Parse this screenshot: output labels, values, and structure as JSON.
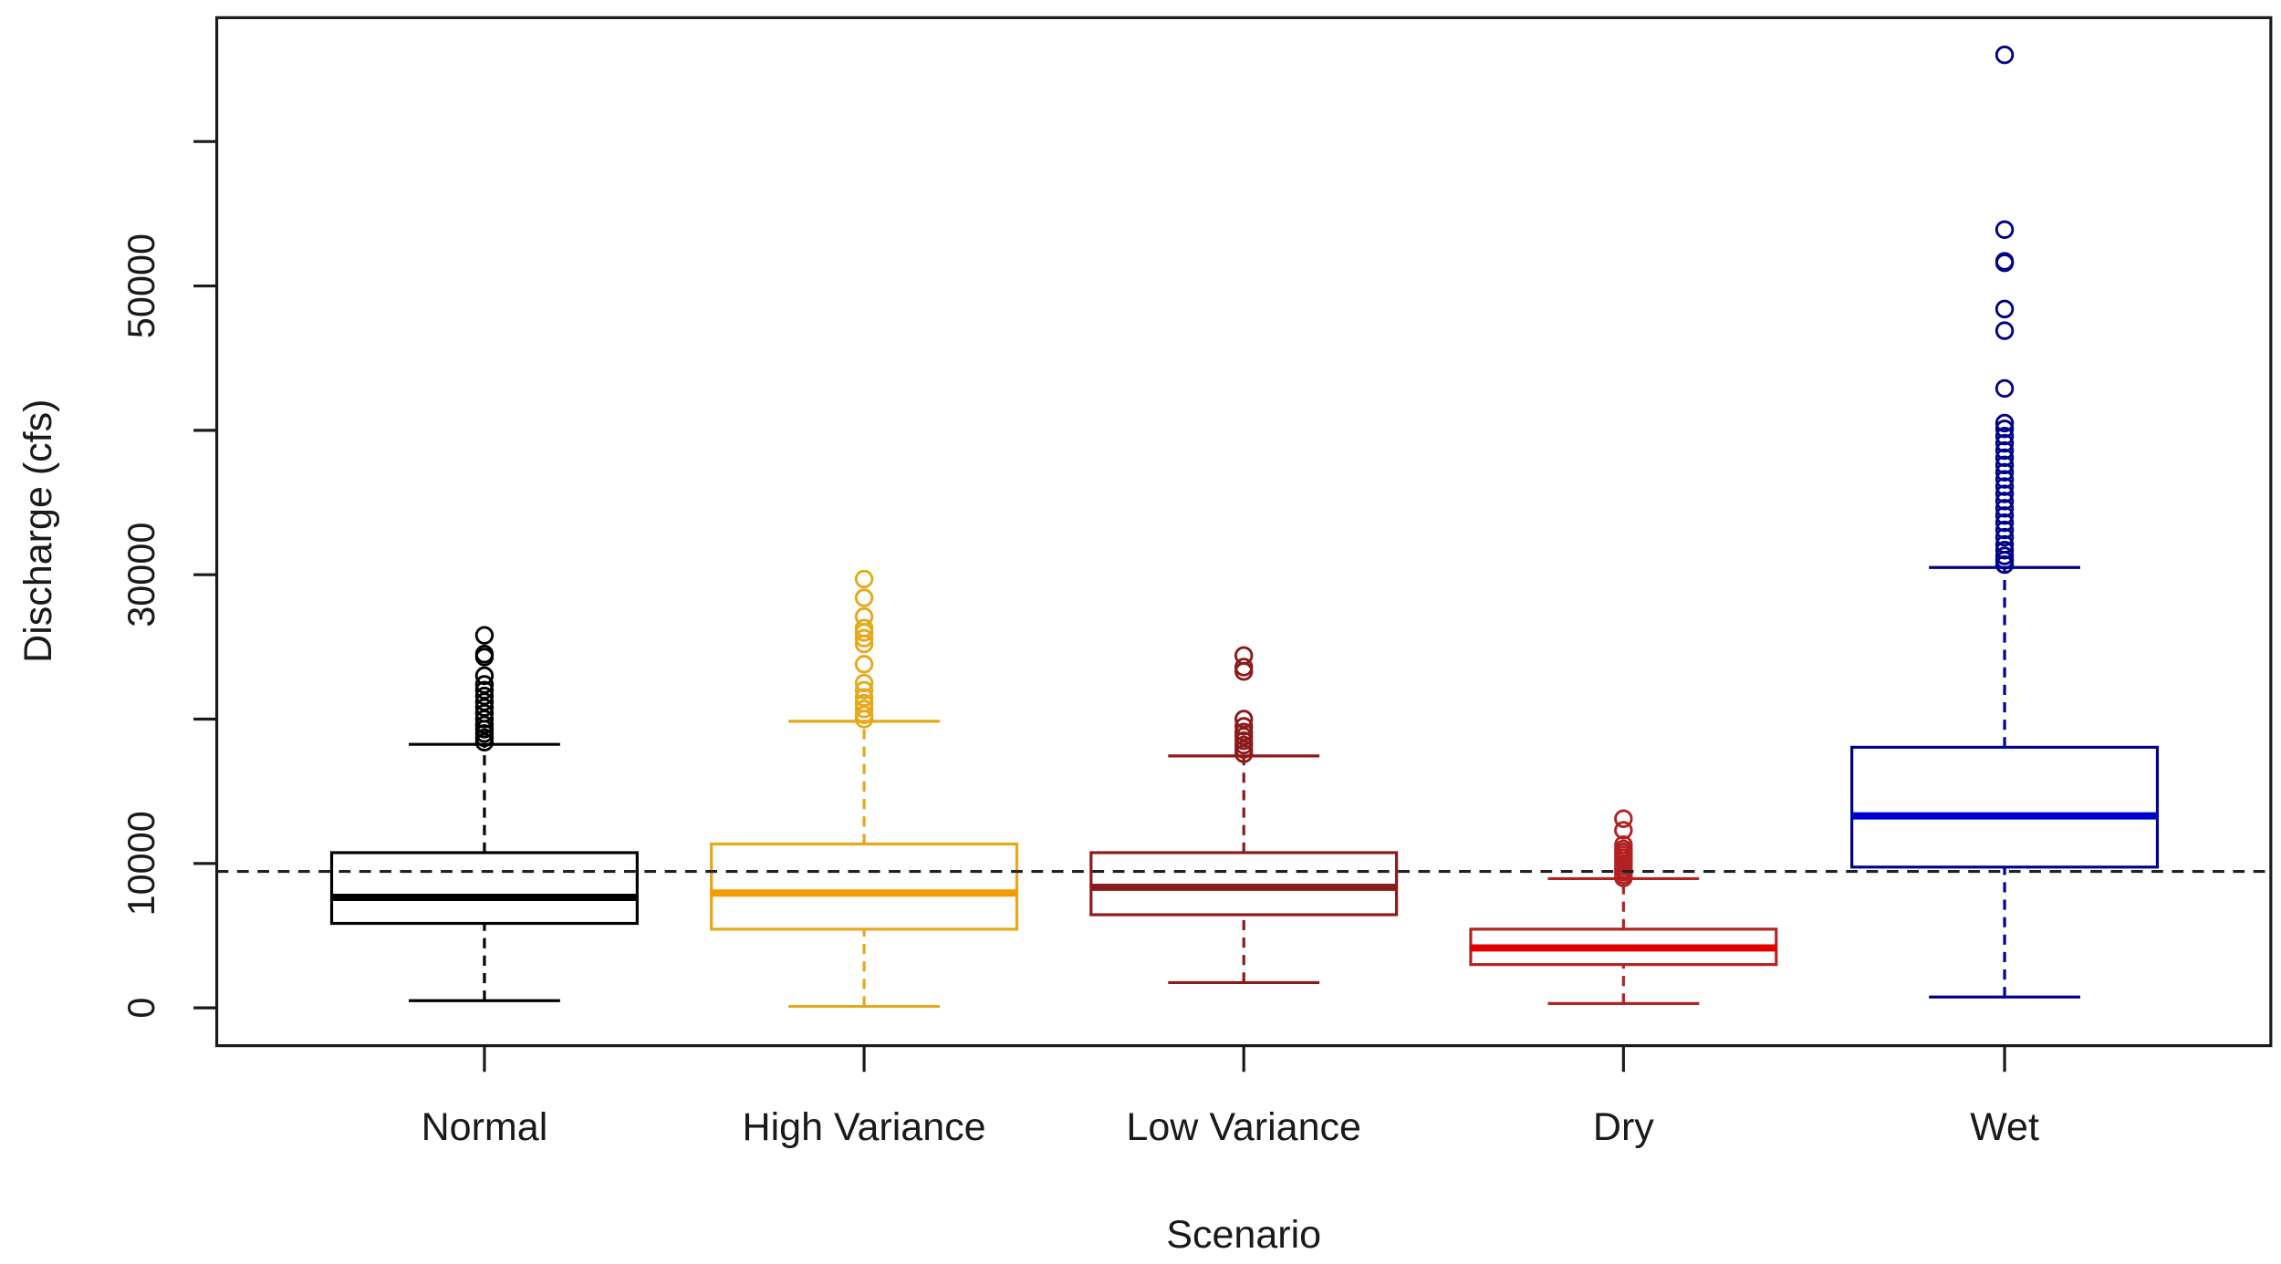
{
  "chart_data": {
    "type": "boxplot",
    "title": "",
    "xlabel": "Scenario",
    "ylabel": "Discharge (cfs)",
    "ylim": [
      -2500,
      68500
    ],
    "yticks": [
      0,
      10000,
      20000,
      30000,
      40000,
      50000,
      60000
    ],
    "ytick_labels": [
      "0",
      "10000",
      "",
      "30000",
      "",
      "50000",
      ""
    ],
    "reference_line": {
      "value": 9450,
      "style": "dashed",
      "color": "#222222"
    },
    "categories": [
      "Normal",
      "High Variance",
      "Low Variance",
      "Dry",
      "Wet"
    ],
    "series": [
      {
        "name": "Normal",
        "color": "#000000",
        "median_color": "#000000",
        "whisker_low": 500,
        "q1": 5850,
        "median": 7650,
        "q3": 10750,
        "whisker_high": 18250,
        "outliers": [
          18400,
          18700,
          19000,
          19300,
          19600,
          20000,
          20400,
          20800,
          21200,
          21600,
          22000,
          22400,
          23000,
          24300,
          24500,
          25800
        ]
      },
      {
        "name": "High Variance",
        "color": "#E6A817",
        "median_color": "#F39C00",
        "whisker_low": 100,
        "q1": 5450,
        "median": 7950,
        "q3": 11350,
        "whisker_high": 19850,
        "outliers": [
          20000,
          20300,
          20700,
          21100,
          21500,
          22000,
          22500,
          23800,
          25200,
          25600,
          26000,
          26300,
          27100,
          28400,
          29700
        ]
      },
      {
        "name": "Low Variance",
        "color": "#8B1A1A",
        "median_color": "#8B1A1A",
        "whisker_low": 1750,
        "q1": 6450,
        "median": 8350,
        "q3": 10750,
        "whisker_high": 17450,
        "outliers": [
          17600,
          17900,
          18200,
          18500,
          18800,
          19100,
          19500,
          20000,
          23300,
          23600,
          24400
        ]
      },
      {
        "name": "Dry",
        "color": "#B22222",
        "median_color": "#E00000",
        "whisker_low": 300,
        "q1": 3000,
        "median": 4150,
        "q3": 5450,
        "whisker_high": 8950,
        "outliers": [
          9000,
          9200,
          9400,
          9600,
          9800,
          10000,
          10200,
          10400,
          10600,
          10800,
          11000,
          11300,
          12300,
          13100
        ]
      },
      {
        "name": "Wet",
        "color": "#00008B",
        "median_color": "#0000CD",
        "whisker_low": 750,
        "q1": 9750,
        "median": 13300,
        "q3": 18050,
        "whisker_high": 30500,
        "outliers": [
          30700,
          31000,
          31300,
          31700,
          32100,
          32600,
          33100,
          33600,
          34100,
          34600,
          35100,
          35600,
          36100,
          36600,
          37100,
          37600,
          38100,
          38600,
          39100,
          39600,
          40100,
          40500,
          42900,
          46900,
          48400,
          51600,
          51700,
          53900,
          66000
        ]
      }
    ],
    "grid": false,
    "legend": "none"
  }
}
